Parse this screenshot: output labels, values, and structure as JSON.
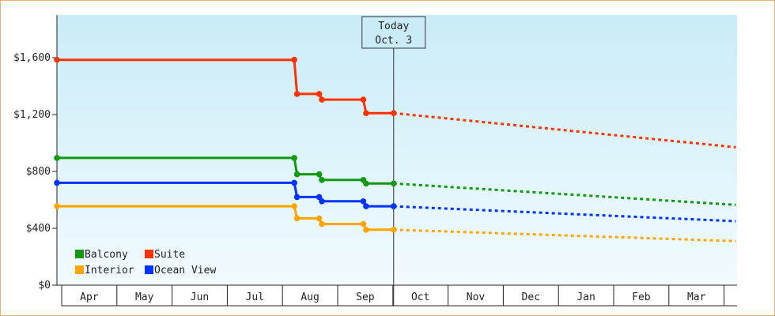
{
  "chart_data": {
    "type": "line",
    "title": "",
    "xlabel": "",
    "ylabel": "",
    "ylim": [
      0,
      1900
    ],
    "y_ticks": [
      0,
      400,
      800,
      1200,
      1600
    ],
    "y_tick_labels": [
      "$0",
      "$400",
      "$800",
      "$1,200",
      "$1,600"
    ],
    "months": [
      "Apr",
      "May",
      "Jun",
      "Jul",
      "Aug",
      "Sep",
      "Oct",
      "Nov",
      "Dec",
      "Jan",
      "Feb",
      "Mar"
    ],
    "today": {
      "line1": "Today",
      "line2": "Oct. 3",
      "x": 6.1
    },
    "grid": false,
    "legend_position": "bottom-left",
    "series": [
      {
        "name": "Balcony",
        "color": "#119911",
        "points": [
          [
            0,
            895
          ],
          [
            4.3,
            895
          ],
          [
            4.35,
            780
          ],
          [
            4.75,
            780
          ],
          [
            4.8,
            740
          ],
          [
            5.55,
            740
          ],
          [
            5.6,
            715
          ],
          [
            6.1,
            715
          ]
        ],
        "forecast": [
          [
            6.1,
            715
          ],
          [
            12.3,
            565
          ]
        ]
      },
      {
        "name": "Suite",
        "color": "#ff3300",
        "points": [
          [
            0,
            1585
          ],
          [
            4.3,
            1585
          ],
          [
            4.35,
            1345
          ],
          [
            4.75,
            1345
          ],
          [
            4.8,
            1305
          ],
          [
            5.55,
            1305
          ],
          [
            5.6,
            1210
          ],
          [
            6.1,
            1210
          ]
        ],
        "forecast": [
          [
            6.1,
            1210
          ],
          [
            12.3,
            970
          ]
        ]
      },
      {
        "name": "Interior",
        "color": "#ffa500",
        "points": [
          [
            0,
            555
          ],
          [
            4.3,
            555
          ],
          [
            4.35,
            470
          ],
          [
            4.75,
            470
          ],
          [
            4.8,
            430
          ],
          [
            5.55,
            430
          ],
          [
            5.6,
            390
          ],
          [
            6.1,
            390
          ]
        ],
        "forecast": [
          [
            6.1,
            390
          ],
          [
            12.3,
            310
          ]
        ]
      },
      {
        "name": "Ocean View",
        "color": "#0033ff",
        "points": [
          [
            0,
            720
          ],
          [
            4.3,
            720
          ],
          [
            4.35,
            620
          ],
          [
            4.75,
            620
          ],
          [
            4.8,
            590
          ],
          [
            5.55,
            590
          ],
          [
            5.6,
            555
          ],
          [
            6.1,
            555
          ]
        ],
        "forecast": [
          [
            6.1,
            555
          ],
          [
            12.3,
            450
          ]
        ]
      }
    ]
  }
}
